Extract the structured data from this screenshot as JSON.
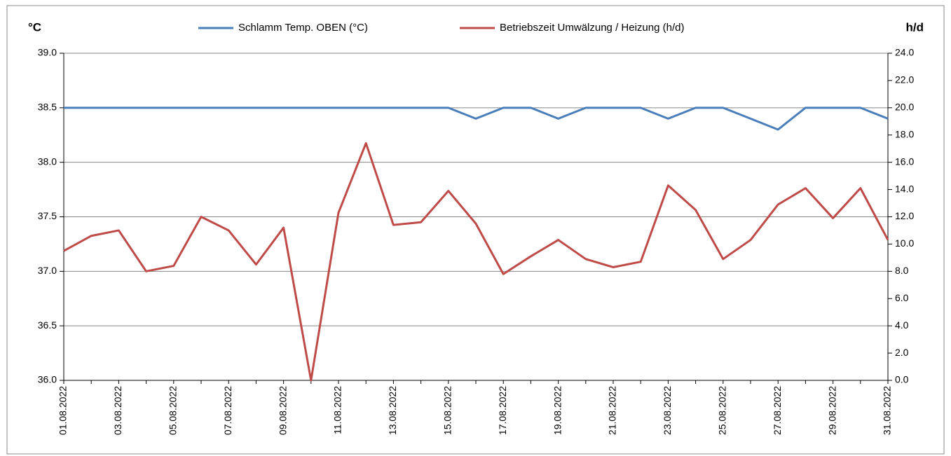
{
  "chart_data": {
    "type": "line",
    "y_axis_label": "°C",
    "y2_axis_label": "h/d",
    "categories": [
      "01.08.2022",
      null,
      "03.08.2022",
      null,
      "05.08.2022",
      null,
      "07.08.2022",
      null,
      "09.08.2022",
      null,
      "11.08.2022",
      null,
      "13.08.2022",
      null,
      "15.08.2022",
      null,
      "17.08.2022",
      null,
      "19.08.2022",
      null,
      "21.08.2022",
      null,
      "23.08.2022",
      null,
      "25.08.2022",
      null,
      "27.08.2022",
      null,
      "29.08.2022",
      null,
      "31.08.2022"
    ],
    "series": [
      {
        "name": "Schlamm Temp. OBEN (°C)",
        "color": "#4a7ebb",
        "axis": "y",
        "values": [
          38.5,
          38.5,
          38.5,
          38.5,
          38.5,
          38.5,
          38.5,
          38.5,
          38.5,
          38.5,
          38.5,
          38.5,
          38.5,
          38.5,
          38.5,
          38.4,
          38.5,
          38.5,
          38.4,
          38.5,
          38.5,
          38.5,
          38.4,
          38.5,
          38.5,
          38.4,
          38.3,
          38.5,
          38.5,
          38.5,
          38.4
        ]
      },
      {
        "name": "Betriebszeit Umwälzung / Heizung (h/d)",
        "color": "#be4b48",
        "axis": "y2",
        "values": [
          9.5,
          10.6,
          11.0,
          8.0,
          8.4,
          12.0,
          11.0,
          8.5,
          11.2,
          0,
          12.3,
          17.4,
          11.4,
          11.6,
          13.9,
          11.5,
          7.8,
          9.1,
          10.3,
          8.9,
          8.3,
          8.7,
          14.3,
          12.5,
          8.9,
          10.3,
          12.9,
          14.1,
          11.9,
          14.1,
          10.3
        ]
      }
    ],
    "ylim": [
      36,
      39
    ],
    "yticks": [
      {
        "value": 36,
        "label": "36.0"
      },
      {
        "value": 36.5,
        "label": "36.5"
      },
      {
        "value": 37,
        "label": "37.0"
      },
      {
        "value": 37.5,
        "label": "37.5"
      },
      {
        "value": 38,
        "label": "38.0"
      },
      {
        "value": 38.5,
        "label": "38.5"
      },
      {
        "value": 39,
        "label": "39.0"
      }
    ],
    "y2lim": [
      0,
      24
    ],
    "y2ticks": [
      {
        "value": 0,
        "label": "0.0"
      },
      {
        "value": 2,
        "label": "2.0"
      },
      {
        "value": 4,
        "label": "4.0"
      },
      {
        "value": 6,
        "label": "6.0"
      },
      {
        "value": 8,
        "label": "8.0"
      },
      {
        "value": 10,
        "label": "10.0"
      },
      {
        "value": 12,
        "label": "12.0"
      },
      {
        "value": 14,
        "label": "14.0"
      },
      {
        "value": 16,
        "label": "16.0"
      },
      {
        "value": 18,
        "label": "18.0"
      },
      {
        "value": 20,
        "label": "20.0"
      },
      {
        "value": 22,
        "label": "22.0"
      },
      {
        "value": 24,
        "label": "24.0"
      }
    ],
    "grid": true,
    "legend": "top"
  }
}
